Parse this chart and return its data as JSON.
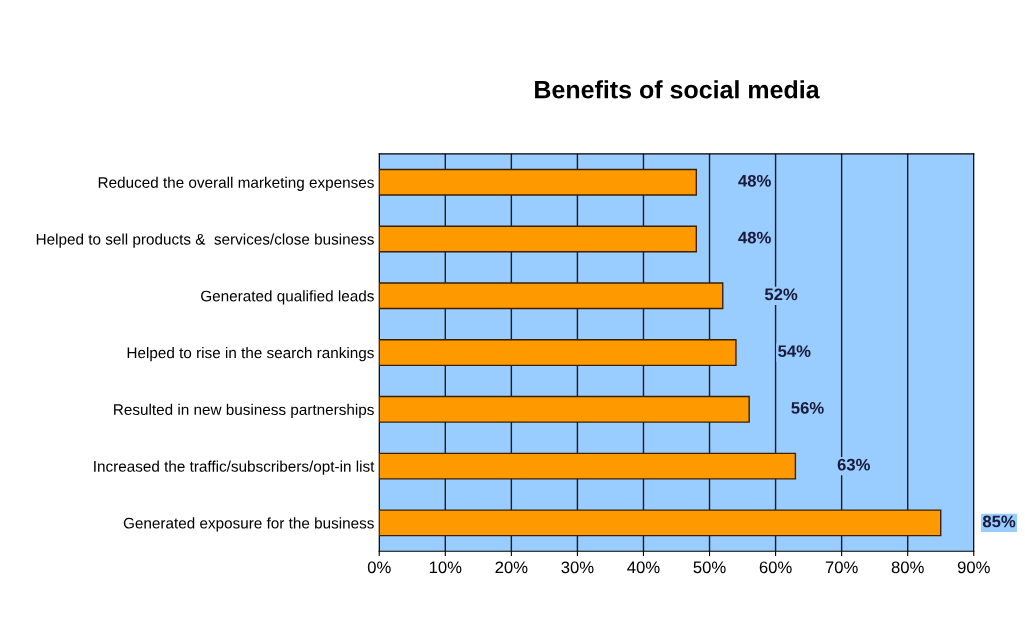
{
  "chart_data": {
    "type": "bar",
    "orientation": "horizontal",
    "title": "Benefits of social media",
    "categories": [
      "Reduced the overall marketing expenses",
      "Helped to sell products &  services/close business",
      "Generated qualified leads",
      "Helped to rise in the search rankings",
      "Resulted in new business partnerships",
      "Increased the traffic/subscribers/opt-in list",
      "Generated exposure for the business"
    ],
    "values": [
      48,
      48,
      52,
      54,
      56,
      63,
      85
    ],
    "value_labels": [
      "48%",
      "48%",
      "52%",
      "54%",
      "56%",
      "63%",
      "85%"
    ],
    "color": "#ff9900",
    "xlim": [
      0,
      90
    ],
    "xticks": [
      {
        "value": 0,
        "label": "0%"
      },
      {
        "value": 10,
        "label": "10%"
      },
      {
        "value": 20,
        "label": "20%"
      },
      {
        "value": 30,
        "label": "30%"
      },
      {
        "value": 40,
        "label": "40%"
      },
      {
        "value": 50,
        "label": "50%"
      },
      {
        "value": 60,
        "label": "60%"
      },
      {
        "value": 70,
        "label": "70%"
      },
      {
        "value": 80,
        "label": "80%"
      },
      {
        "value": 90,
        "label": "90%"
      }
    ],
    "grid": "x"
  }
}
